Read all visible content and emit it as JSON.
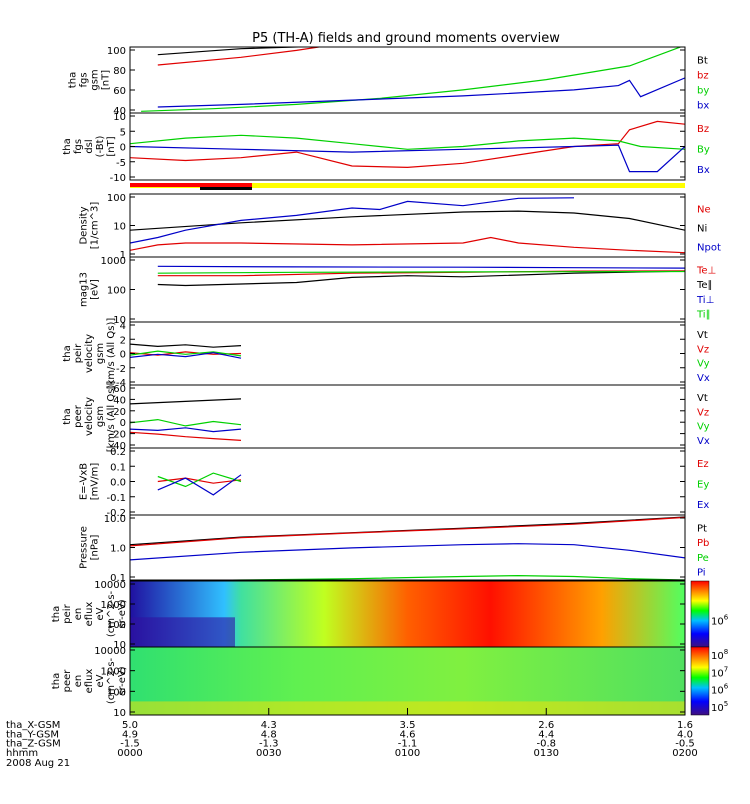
{
  "title": "P5 (TH-A) fields and ground moments overview",
  "chart_data": [
    {
      "type": "line",
      "ylabel": [
        "tha",
        "fgs",
        "gsm",
        "[nT]"
      ],
      "yticks": [
        "100",
        "80",
        "60",
        "40"
      ],
      "ylim": [
        25,
        102
      ],
      "legend": [
        {
          "label": "Bt",
          "color": "#000000"
        },
        {
          "label": "bz",
          "color": "#e00000"
        },
        {
          "label": "by",
          "color": "#00d000"
        },
        {
          "label": "bx",
          "color": "#0000c8"
        }
      ],
      "series": [
        {
          "name": "Bt",
          "color": "#000000",
          "x": [
            0.05,
            0.2,
            0.35,
            0.38
          ],
          "y": [
            93,
            100,
            103,
            104
          ]
        },
        {
          "name": "bz",
          "color": "#e00000",
          "x": [
            0.05,
            0.2,
            0.3,
            0.34
          ],
          "y": [
            81,
            90,
            98,
            102
          ]
        },
        {
          "name": "by",
          "color": "#00d000",
          "x": [
            0.02,
            0.15,
            0.3,
            0.45,
            0.6,
            0.75,
            0.9,
            1.0
          ],
          "y": [
            27,
            30,
            35,
            42,
            52,
            64,
            80,
            104
          ]
        },
        {
          "name": "bx",
          "color": "#0000c8",
          "x": [
            0.05,
            0.2,
            0.4,
            0.6,
            0.8,
            0.88,
            0.9,
            0.92,
            1.0
          ],
          "y": [
            32,
            35,
            40,
            45,
            52,
            57,
            63,
            44,
            66
          ]
        }
      ]
    },
    {
      "type": "line",
      "ylabel": [
        "tha",
        "fgs",
        "dsl",
        "(-Bt)",
        "[nT]"
      ],
      "yticks": [
        "10",
        "5",
        "0",
        "-5",
        "-10"
      ],
      "ylim": [
        -12,
        12
      ],
      "legend": [
        {
          "label": "Bz",
          "color": "#e00000"
        },
        {
          "label": "By",
          "color": "#00d000"
        },
        {
          "label": "Bx",
          "color": "#0000c8"
        }
      ],
      "series": [
        {
          "name": "Bz",
          "color": "#e00000",
          "x": [
            0.0,
            0.1,
            0.2,
            0.3,
            0.4,
            0.5,
            0.6,
            0.7,
            0.8,
            0.88,
            0.9,
            0.95,
            1.0
          ],
          "y": [
            -4,
            -5,
            -4,
            -2,
            -7,
            -7.5,
            -6,
            -3,
            0,
            1,
            6,
            9,
            8
          ]
        },
        {
          "name": "By",
          "color": "#00d000",
          "x": [
            0.0,
            0.1,
            0.2,
            0.3,
            0.4,
            0.5,
            0.6,
            0.7,
            0.8,
            0.88,
            0.92,
            1.0
          ],
          "y": [
            1,
            3,
            4,
            3,
            1,
            -1,
            0,
            2,
            3,
            2,
            0,
            -1
          ]
        },
        {
          "name": "Bx",
          "color": "#0000c8",
          "x": [
            0.0,
            0.2,
            0.4,
            0.6,
            0.8,
            0.88,
            0.9,
            0.95,
            1.0
          ],
          "y": [
            0,
            -1,
            -2,
            -1,
            0,
            0.5,
            -9,
            -9,
            0
          ]
        }
      ]
    },
    {
      "type": "line",
      "ylabel": [
        "Density",
        "[1/cm^3]"
      ],
      "yticks": [
        "100",
        "10",
        "1"
      ],
      "ylim": [
        0.8,
        300
      ],
      "log": true,
      "legend": [
        {
          "label": "Ne",
          "color": "#e00000"
        },
        {
          "label": "Ni",
          "color": "#000000"
        },
        {
          "label": "Npot",
          "color": "#0000c8"
        }
      ],
      "series": [
        {
          "name": "Ni",
          "color": "#000000",
          "x": [
            0.0,
            0.2,
            0.4,
            0.6,
            0.7,
            0.8,
            0.9,
            1.0
          ],
          "y": [
            10,
            20,
            35,
            55,
            60,
            50,
            30,
            10
          ]
        },
        {
          "name": "Ne",
          "color": "#e00000",
          "x": [
            0.0,
            0.05,
            0.1,
            0.2,
            0.4,
            0.6,
            0.65,
            0.7,
            0.8,
            0.9,
            1.0
          ],
          "y": [
            1.5,
            2.5,
            3,
            3,
            2.5,
            3,
            5,
            3,
            2,
            1.5,
            1.2
          ]
        },
        {
          "name": "Npot",
          "color": "#0000c8",
          "x": [
            0.0,
            0.05,
            0.1,
            0.2,
            0.3,
            0.4,
            0.45,
            0.5,
            0.6,
            0.7,
            0.8
          ],
          "y": [
            3,
            5,
            10,
            25,
            40,
            80,
            70,
            150,
            100,
            200,
            210
          ]
        }
      ]
    },
    {
      "type": "line",
      "ylabel": [
        "mag13",
        "[eV]"
      ],
      "yticks": [
        "1000",
        "100",
        "10"
      ],
      "ylim": [
        8,
        1000
      ],
      "log": true,
      "legend": [
        {
          "label": "Te⊥",
          "color": "#e00000"
        },
        {
          "label": "Te∥",
          "color": "#000000"
        },
        {
          "label": "Ti⊥",
          "color": "#0000c8"
        },
        {
          "label": "Ti∥",
          "color": "#00d000"
        }
      ],
      "series": [
        {
          "name": "Ti⊥",
          "color": "#0000c8",
          "x": [
            0.05,
            0.3,
            0.6,
            0.8,
            1.0
          ],
          "y": [
            500,
            480,
            470,
            450,
            440
          ]
        },
        {
          "name": "Te∥",
          "color": "#000000",
          "x": [
            0.05,
            0.1,
            0.3,
            0.4,
            0.5,
            0.6,
            0.8,
            1.0
          ],
          "y": [
            130,
            120,
            150,
            220,
            250,
            230,
            300,
            350
          ]
        },
        {
          "name": "Te⊥",
          "color": "#e00000",
          "x": [
            0.05,
            0.2,
            0.4,
            0.6,
            0.8,
            1.0
          ],
          "y": [
            250,
            250,
            300,
            320,
            350,
            360
          ]
        },
        {
          "name": "Ti∥",
          "color": "#00d000",
          "x": [
            0.05,
            0.3,
            0.6,
            1.0
          ],
          "y": [
            300,
            320,
            330,
            340
          ]
        }
      ]
    },
    {
      "type": "line",
      "ylabel": [
        "tha",
        "peir",
        "velocity",
        "gsm",
        "[km/s (All Qs)]"
      ],
      "yticks": [
        "4",
        "2",
        "0",
        "-2",
        "-4"
      ],
      "ylim": [
        -4,
        4
      ],
      "legend": [
        {
          "label": "Vt",
          "color": "#000000"
        },
        {
          "label": "Vz",
          "color": "#e00000"
        },
        {
          "label": "Vy",
          "color": "#00d000"
        },
        {
          "label": "Vx",
          "color": "#0000c8"
        }
      ],
      "series": [
        {
          "name": "Vt",
          "color": "#000000",
          "x": [
            0.0,
            0.05,
            0.1,
            0.15,
            0.2
          ],
          "y": [
            1.2,
            0.9,
            1.1,
            0.8,
            1.0
          ]
        },
        {
          "name": "Vz",
          "color": "#e00000",
          "x": [
            0.0,
            0.05,
            0.1,
            0.15,
            0.2
          ],
          "y": [
            0.1,
            -0.2,
            0.2,
            -0.1,
            0.0
          ]
        },
        {
          "name": "Vy",
          "color": "#00d000",
          "x": [
            0.0,
            0.05,
            0.1,
            0.15,
            0.2
          ],
          "y": [
            -0.2,
            0.3,
            -0.1,
            0.2,
            -0.3
          ]
        },
        {
          "name": "Vx",
          "color": "#0000c8",
          "x": [
            0.0,
            0.05,
            0.1,
            0.15,
            0.2
          ],
          "y": [
            -0.5,
            -0.1,
            -0.4,
            0.1,
            -0.6
          ]
        }
      ]
    },
    {
      "type": "line",
      "ylabel": [
        "tha",
        "peer",
        "velocity",
        "gsm",
        "[km/s (All Qs)]"
      ],
      "yticks": [
        "60",
        "40",
        "20",
        "0",
        "-20",
        "-40"
      ],
      "ylim": [
        -40,
        60
      ],
      "legend": [
        {
          "label": "Vt",
          "color": "#000000"
        },
        {
          "label": "Vz",
          "color": "#e00000"
        },
        {
          "label": "Vy",
          "color": "#00d000"
        },
        {
          "label": "Vx",
          "color": "#0000c8"
        }
      ],
      "series": [
        {
          "name": "Vt",
          "color": "#000000",
          "x": [
            0.0,
            0.05,
            0.1,
            0.15,
            0.2
          ],
          "y": [
            30,
            32,
            34,
            36,
            38
          ]
        },
        {
          "name": "Vz",
          "color": "#e00000",
          "x": [
            0.0,
            0.05,
            0.1,
            0.15,
            0.2
          ],
          "y": [
            -15,
            -18,
            -22,
            -25,
            -28
          ]
        },
        {
          "name": "Vy",
          "color": "#00d000",
          "x": [
            0.0,
            0.05,
            0.1,
            0.15,
            0.2
          ],
          "y": [
            0,
            5,
            -5,
            2,
            -3
          ]
        },
        {
          "name": "Vx",
          "color": "#0000c8",
          "x": [
            0.0,
            0.05,
            0.1,
            0.15,
            0.2
          ],
          "y": [
            -10,
            -12,
            -8,
            -14,
            -10
          ]
        }
      ]
    },
    {
      "type": "line",
      "ylabel": [
        "E=-VxB",
        "[mV/m]"
      ],
      "yticks": [
        "0.2",
        "0.1",
        "0.0",
        "-0.1",
        "-0.2"
      ],
      "ylim": [
        -0.2,
        0.2
      ],
      "legend": [
        {
          "label": "Ez",
          "color": "#e00000"
        },
        {
          "label": "Ey",
          "color": "#00d000"
        },
        {
          "label": "Ex",
          "color": "#0000c8"
        }
      ],
      "series": [
        {
          "name": "Ez",
          "color": "#e00000",
          "x": [
            0.05,
            0.1,
            0.15,
            0.2
          ],
          "y": [
            0.0,
            0.02,
            -0.01,
            0.01
          ]
        },
        {
          "name": "Ey",
          "color": "#00d000",
          "x": [
            0.05,
            0.1,
            0.15,
            0.2
          ],
          "y": [
            0.03,
            -0.03,
            0.05,
            0.0
          ]
        },
        {
          "name": "Ex",
          "color": "#0000c8",
          "x": [
            0.05,
            0.1,
            0.15,
            0.2
          ],
          "y": [
            -0.05,
            0.02,
            -0.08,
            0.04
          ]
        }
      ]
    },
    {
      "type": "line",
      "ylabel": [
        "Pressure",
        "[nPa]"
      ],
      "yticks": [
        "10.0",
        "1.0",
        "0.1"
      ],
      "ylim": [
        0.08,
        30
      ],
      "log": true,
      "legend": [
        {
          "label": "Pt",
          "color": "#000000"
        },
        {
          "label": "Pb",
          "color": "#e00000"
        },
        {
          "label": "Pe",
          "color": "#00d000"
        },
        {
          "label": "Pi",
          "color": "#0000c8"
        }
      ],
      "series": [
        {
          "name": "Pt",
          "color": "#000000",
          "x": [
            0.0,
            0.2,
            0.4,
            0.6,
            0.8,
            1.0
          ],
          "y": [
            2,
            4,
            6,
            9,
            14,
            25
          ]
        },
        {
          "name": "Pb",
          "color": "#e00000",
          "x": [
            0.0,
            0.2,
            0.4,
            0.6,
            0.8,
            1.0
          ],
          "y": [
            1.8,
            3.8,
            5.8,
            8.5,
            13,
            24
          ]
        },
        {
          "name": "Pi",
          "color": "#0000c8",
          "x": [
            0.0,
            0.2,
            0.4,
            0.6,
            0.7,
            0.8,
            0.9,
            1.0
          ],
          "y": [
            0.5,
            1.0,
            1.5,
            2.0,
            2.2,
            2.0,
            1.2,
            0.6
          ]
        },
        {
          "name": "Pe",
          "color": "#00d000",
          "x": [
            0.0,
            0.2,
            0.4,
            0.6,
            0.7,
            0.8,
            0.9,
            1.0
          ],
          "y": [
            0.07,
            0.08,
            0.09,
            0.11,
            0.12,
            0.11,
            0.09,
            0.08
          ]
        }
      ]
    },
    {
      "type": "heatmap",
      "ylabel": [
        "tha",
        "peir",
        "en",
        "eflux",
        "eV",
        "(cm^2-s-",
        "sr-eV)"
      ],
      "yticks": [
        "10000",
        "1000",
        "100",
        "10"
      ],
      "colorbar_ticks": [
        "10^6"
      ]
    },
    {
      "type": "heatmap",
      "ylabel": [
        "tha",
        "peer",
        "en",
        "eflux",
        "eV",
        "(cm^2-s-",
        "sr-eV)"
      ],
      "yticks": [
        "10000",
        "1000",
        "100",
        "10"
      ],
      "colorbar_ticks": [
        "10^8",
        "10^7",
        "10^6",
        "10^5"
      ]
    }
  ],
  "time_axis": {
    "rows": [
      {
        "label": "tha_X-GSM",
        "values": [
          "5.0",
          "4.3",
          "3.5",
          "2.6",
          "1.6"
        ]
      },
      {
        "label": "tha_Y-GSM",
        "values": [
          "4.9",
          "4.8",
          "4.6",
          "4.4",
          "4.0"
        ]
      },
      {
        "label": "tha_Z-GSM",
        "values": [
          "-1.5",
          "-1.3",
          "-1.1",
          "-0.8",
          "-0.5"
        ]
      },
      {
        "label": "hhmm",
        "values": [
          "0000",
          "0030",
          "0100",
          "0130",
          "0200"
        ]
      }
    ],
    "date": "2008 Aug 21"
  }
}
